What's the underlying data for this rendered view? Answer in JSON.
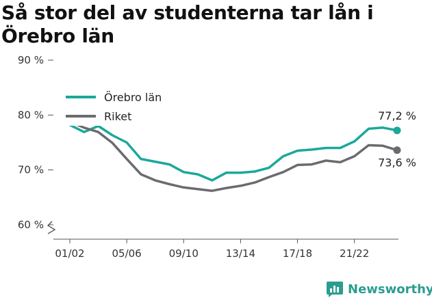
{
  "title": "Så stor del av studenterna tar lån i Örebro län",
  "brand": {
    "name": "Newsworthy",
    "icon": "newsworthy-logo-icon",
    "color": "#2a9d8f"
  },
  "chart_data": {
    "type": "line",
    "title": "Så stor del av studenterna tar lån i Örebro län",
    "xlabel": "",
    "ylabel": "",
    "x": [
      "01/02",
      "02/03",
      "03/04",
      "04/05",
      "05/06",
      "06/07",
      "07/08",
      "08/09",
      "09/10",
      "10/11",
      "11/12",
      "12/13",
      "13/14",
      "14/15",
      "15/16",
      "16/17",
      "17/18",
      "18/19",
      "19/20",
      "20/21",
      "21/22",
      "22/23",
      "23/24",
      "24/25"
    ],
    "x_ticks": [
      "01/02",
      "05/06",
      "09/10",
      "13/14",
      "17/18",
      "21/22"
    ],
    "y_ticks": [
      60,
      70,
      80,
      90
    ],
    "y_tick_labels": [
      "60 %",
      "70 %",
      "80 %",
      "90 %"
    ],
    "ylim": [
      58,
      91
    ],
    "y_axis_break": true,
    "grid": false,
    "legend_position": "top-left",
    "series": [
      {
        "name": "Örebro län",
        "color": "#1aa89a",
        "values": [
          78.2,
          76.9,
          78.0,
          76.3,
          75.0,
          72.0,
          71.5,
          71.0,
          69.6,
          69.2,
          68.1,
          69.5,
          69.5,
          69.7,
          70.4,
          72.5,
          73.5,
          73.7,
          74.0,
          74.0,
          75.2,
          77.5,
          77.7,
          77.2
        ],
        "end_label": "77,2 %"
      },
      {
        "name": "Riket",
        "color": "#6b6b6f",
        "values": [
          78.8,
          77.7,
          76.9,
          74.9,
          72.0,
          69.2,
          68.1,
          67.4,
          66.8,
          66.5,
          66.2,
          66.7,
          67.1,
          67.7,
          68.7,
          69.6,
          70.9,
          71.0,
          71.7,
          71.4,
          72.5,
          74.5,
          74.4,
          73.6
        ],
        "end_label": "73,6 %"
      }
    ]
  }
}
